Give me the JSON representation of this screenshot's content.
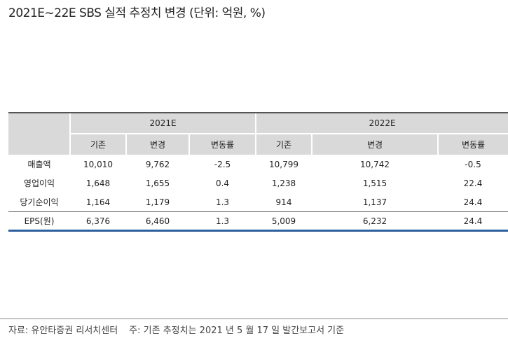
{
  "title": "2021E~22E SBS 실적 추정치 변경 (단위: 억원, %)",
  "table": {
    "groups": [
      "2021E",
      "2022E"
    ],
    "subheaders": [
      "기존",
      "변경",
      "변동률",
      "기존",
      "변경",
      "변동률"
    ],
    "rows": [
      {
        "label": "매출액",
        "cells": [
          "10,010",
          "9,762",
          "-2.5",
          "10,799",
          "10,742",
          "-0.5"
        ]
      },
      {
        "label": "영업이익",
        "cells": [
          "1,648",
          "1,655",
          "0.4",
          "1,238",
          "1,515",
          "22.4"
        ]
      },
      {
        "label": "당기순이익",
        "cells": [
          "1,164",
          "1,179",
          "1.3",
          "914",
          "1,137",
          "24.4"
        ]
      },
      {
        "label": "EPS(원)",
        "cells": [
          "6,376",
          "6,460",
          "1.3",
          "5,009",
          "6,232",
          "24.4"
        ]
      }
    ]
  },
  "footer": {
    "source": "자료: 유안타증권 리서치센터",
    "note": "주: 기존 추정치는 2021 년 5 월 17 일 발간보고서 기준"
  }
}
